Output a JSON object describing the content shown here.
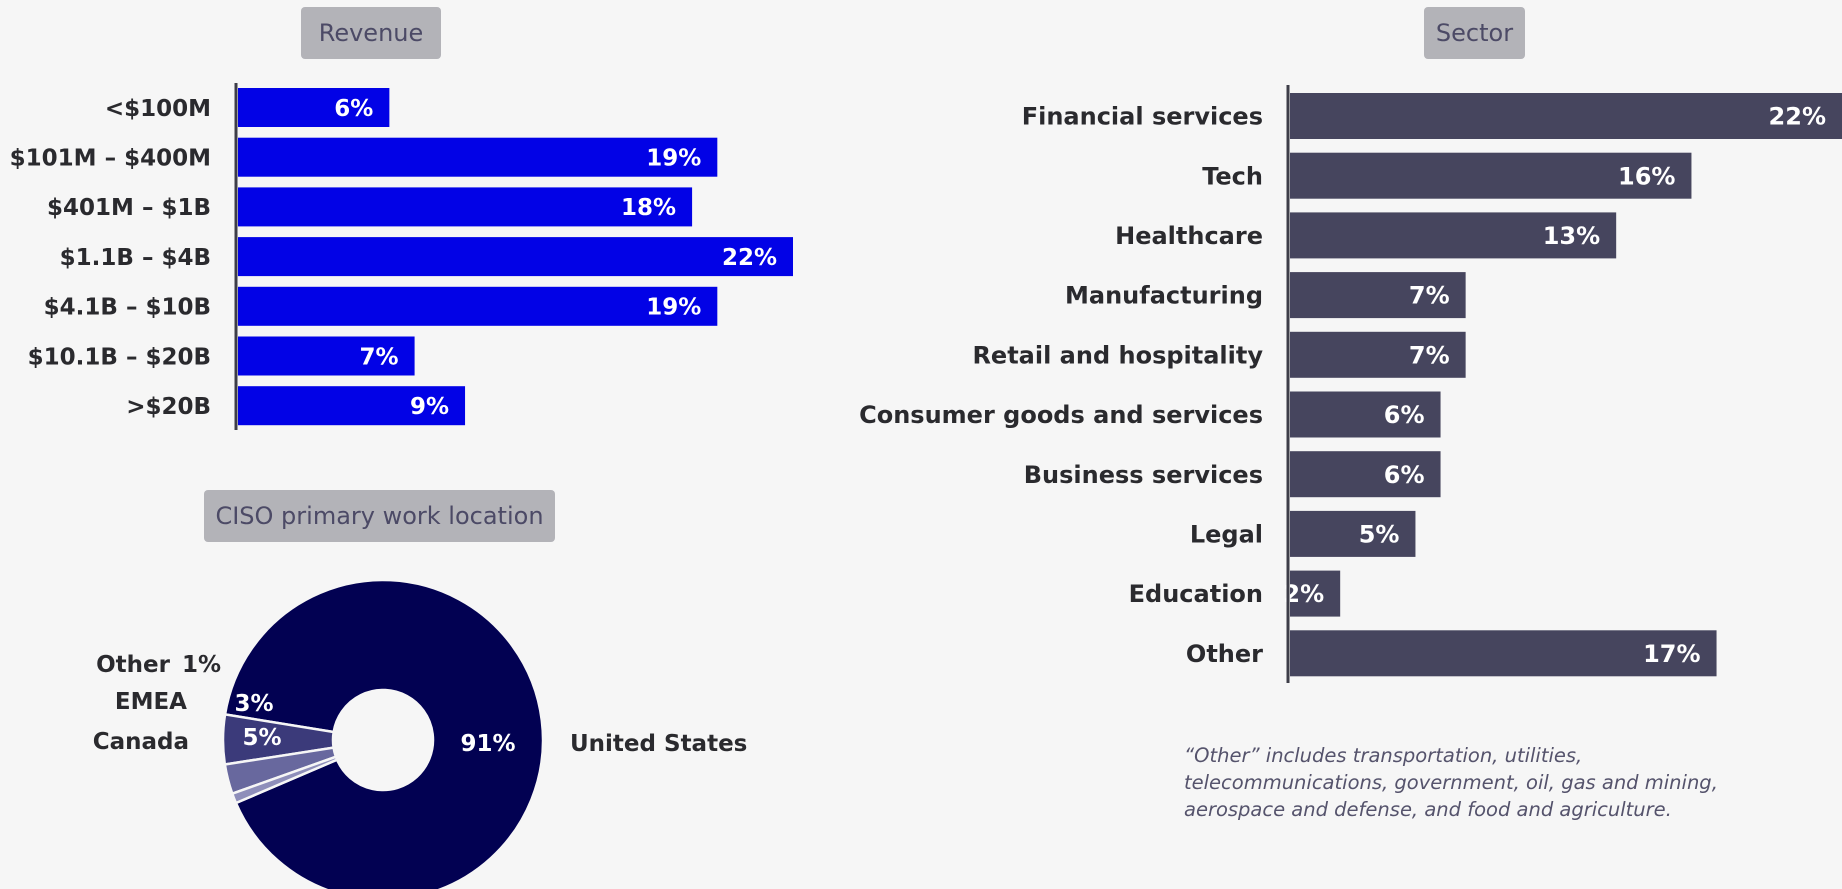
{
  "colors": {
    "revenue_bar": "#0202e6",
    "sector_bar": "#46455e",
    "pie": [
      "#020152",
      "#3b3a7a",
      "#68689e",
      "#8e8eba"
    ],
    "axis": "#3d3d48"
  },
  "footnote": "“Other” includes transportation, utilities, telecommunications, government, oil, gas and mining, aerospace and defense, and food and agriculture.",
  "chart_data": [
    {
      "type": "bar",
      "orientation": "horizontal",
      "title": "Revenue",
      "categories": [
        "<$100M",
        "$101M – $400M",
        "$401M – $1B",
        "$1.1B – $4B",
        "$4.1B – $10B",
        "$10.1B – $20B",
        ">$20B"
      ],
      "values": [
        6,
        19,
        18,
        22,
        19,
        7,
        9
      ],
      "value_labels": [
        "6%",
        "19%",
        "18%",
        "22%",
        "19%",
        "7%",
        "9%"
      ],
      "xlim": [
        0,
        22
      ],
      "unit": "%",
      "grid": false,
      "legend": "none"
    },
    {
      "type": "bar",
      "orientation": "horizontal",
      "title": "Sector",
      "categories": [
        "Financial services",
        "Tech",
        "Healthcare",
        "Manufacturing",
        "Retail and hospitality",
        "Consumer goods and services",
        "Business services",
        "Legal",
        "Education",
        "Other"
      ],
      "values": [
        22,
        16,
        13,
        7,
        7,
        6,
        6,
        5,
        2,
        17
      ],
      "value_labels": [
        "22%",
        "16%",
        "13%",
        "7%",
        "7%",
        "6%",
        "6%",
        "5%",
        "2%",
        "17%"
      ],
      "xlim": [
        0,
        22
      ],
      "unit": "%",
      "grid": false,
      "legend": "none"
    },
    {
      "type": "pie",
      "variant": "donut",
      "title": "CISO primary work location",
      "labels": [
        "United States",
        "Canada",
        "EMEA",
        "Other"
      ],
      "values": [
        91,
        5,
        3,
        1
      ],
      "value_labels": [
        "91%",
        "5%",
        "3%",
        "1%"
      ],
      "legend": "direct labels"
    }
  ]
}
